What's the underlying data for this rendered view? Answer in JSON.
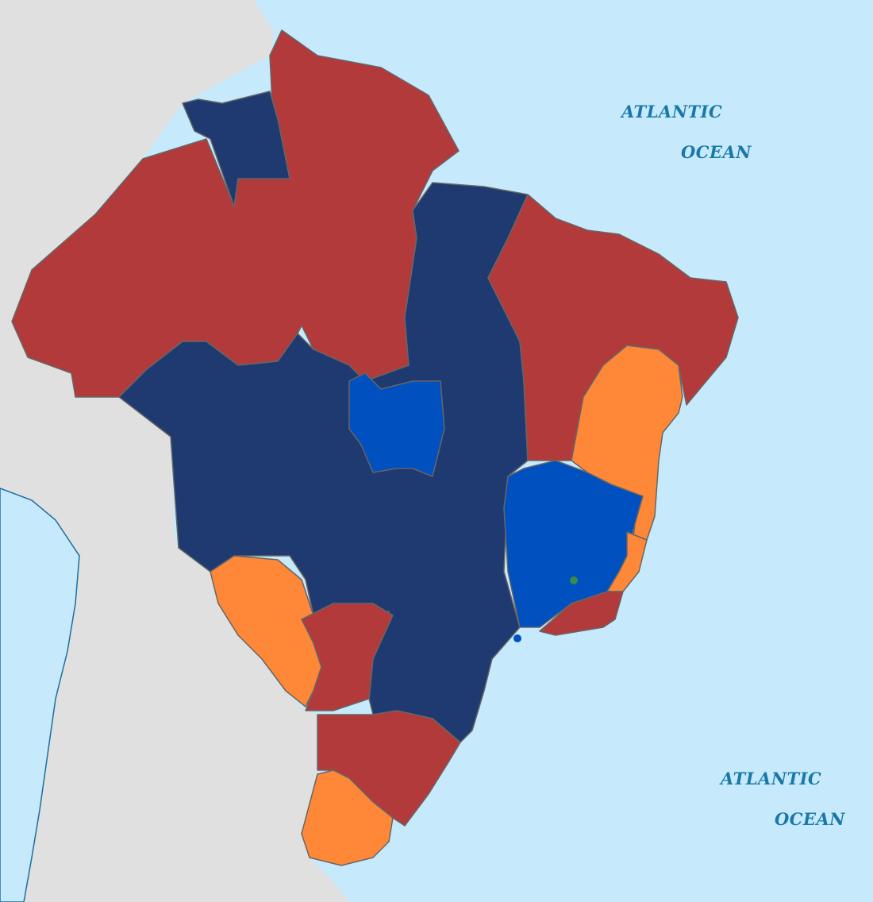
{
  "map": {
    "colors": {
      "ocean": "#c6eafc",
      "land": "#e0e0e0",
      "coast": "#1a6fa0",
      "border": "#666666",
      "label": "#1a78a8",
      "red": "#b33a3a",
      "dark_blue": "#1f3a70",
      "blue": "#0050bf",
      "orange": "#ff8838",
      "green_dot": "#3a8a4a"
    },
    "labels": [
      {
        "text": "ATLANTIC"
      },
      {
        "text": "OCEAN"
      },
      {
        "text": "ATLANTIC"
      },
      {
        "text": "OCEAN"
      }
    ]
  }
}
